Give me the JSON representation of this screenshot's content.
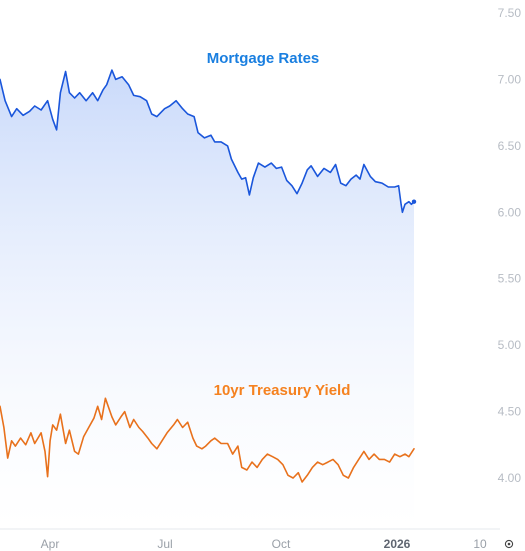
{
  "chart_data": {
    "type": "line",
    "title": "",
    "xlabel": "",
    "ylabel": "",
    "x_range": [
      "2025-03-01",
      "2026-02-06"
    ],
    "ylim": [
      3.9,
      7.55
    ],
    "y_ticks": [
      "7.50",
      "7.00",
      "6.50",
      "6.00",
      "5.50",
      "5.00",
      "4.50",
      "4.00"
    ],
    "x_ticks": [
      {
        "label": "Apr",
        "date": "2025-04-01",
        "bold": false
      },
      {
        "label": "Jul",
        "date": "2025-07-01",
        "bold": false
      },
      {
        "label": "Oct",
        "date": "2025-10-01",
        "bold": false
      },
      {
        "label": "2026",
        "date": "2026-01-01",
        "bold": true
      },
      {
        "label": "10",
        "date": "2026-02-10",
        "bold": false
      }
    ],
    "grid": false,
    "legend": "none",
    "series": [
      {
        "name": "Mortgage Rates",
        "color": "#1a56db",
        "label_color": "#1a7fe0",
        "area_fill": true,
        "points": [
          [
            "2025-03-01",
            7.0
          ],
          [
            "2025-03-05",
            6.84
          ],
          [
            "2025-03-10",
            6.72
          ],
          [
            "2025-03-14",
            6.78
          ],
          [
            "2025-03-19",
            6.73
          ],
          [
            "2025-03-24",
            6.76
          ],
          [
            "2025-03-28",
            6.8
          ],
          [
            "2025-04-02",
            6.77
          ],
          [
            "2025-04-07",
            6.84
          ],
          [
            "2025-04-11",
            6.7
          ],
          [
            "2025-04-14",
            6.62
          ],
          [
            "2025-04-17",
            6.9
          ],
          [
            "2025-04-21",
            7.06
          ],
          [
            "2025-04-24",
            6.9
          ],
          [
            "2025-04-28",
            6.86
          ],
          [
            "2025-05-02",
            6.9
          ],
          [
            "2025-05-07",
            6.84
          ],
          [
            "2025-05-12",
            6.9
          ],
          [
            "2025-05-16",
            6.84
          ],
          [
            "2025-05-20",
            6.92
          ],
          [
            "2025-05-23",
            6.96
          ],
          [
            "2025-05-27",
            7.07
          ],
          [
            "2025-05-30",
            7.0
          ],
          [
            "2025-06-04",
            7.02
          ],
          [
            "2025-06-09",
            6.96
          ],
          [
            "2025-06-13",
            6.88
          ],
          [
            "2025-06-18",
            6.87
          ],
          [
            "2025-06-23",
            6.84
          ],
          [
            "2025-06-27",
            6.74
          ],
          [
            "2025-07-01",
            6.72
          ],
          [
            "2025-07-07",
            6.78
          ],
          [
            "2025-07-11",
            6.8
          ],
          [
            "2025-07-16",
            6.84
          ],
          [
            "2025-07-21",
            6.78
          ],
          [
            "2025-07-25",
            6.74
          ],
          [
            "2025-07-30",
            6.72
          ],
          [
            "2025-08-02",
            6.6
          ],
          [
            "2025-08-07",
            6.56
          ],
          [
            "2025-08-12",
            6.58
          ],
          [
            "2025-08-15",
            6.53
          ],
          [
            "2025-08-20",
            6.53
          ],
          [
            "2025-08-25",
            6.5
          ],
          [
            "2025-08-28",
            6.4
          ],
          [
            "2025-09-02",
            6.3
          ],
          [
            "2025-09-05",
            6.25
          ],
          [
            "2025-09-08",
            6.26
          ],
          [
            "2025-09-11",
            6.13
          ],
          [
            "2025-09-14",
            6.26
          ],
          [
            "2025-09-18",
            6.37
          ],
          [
            "2025-09-23",
            6.34
          ],
          [
            "2025-09-28",
            6.37
          ],
          [
            "2025-10-02",
            6.33
          ],
          [
            "2025-10-06",
            6.34
          ],
          [
            "2025-10-10",
            6.24
          ],
          [
            "2025-10-14",
            6.2
          ],
          [
            "2025-10-18",
            6.14
          ],
          [
            "2025-10-22",
            6.22
          ],
          [
            "2025-10-26",
            6.32
          ],
          [
            "2025-10-29",
            6.35
          ],
          [
            "2025-11-03",
            6.27
          ],
          [
            "2025-11-08",
            6.33
          ],
          [
            "2025-11-13",
            6.3
          ],
          [
            "2025-11-17",
            6.36
          ],
          [
            "2025-11-21",
            6.22
          ],
          [
            "2025-11-25",
            6.2
          ],
          [
            "2025-11-29",
            6.25
          ],
          [
            "2025-12-03",
            6.28
          ],
          [
            "2025-12-06",
            6.25
          ],
          [
            "2025-12-09",
            6.36
          ],
          [
            "2025-12-14",
            6.27
          ],
          [
            "2025-12-18",
            6.23
          ],
          [
            "2025-12-23",
            6.22
          ],
          [
            "2025-12-28",
            6.19
          ],
          [
            "2026-01-02",
            6.19
          ],
          [
            "2026-01-05",
            6.2
          ],
          [
            "2026-01-07",
            6.06
          ],
          [
            "2026-01-08",
            6.0
          ],
          [
            "2026-01-10",
            6.06
          ],
          [
            "2026-01-13",
            6.08
          ],
          [
            "2026-01-15",
            6.06
          ],
          [
            "2026-01-17",
            6.08
          ]
        ]
      },
      {
        "name": "10yr Treasury Yield",
        "color": "#e8711c",
        "label_color": "#f58220",
        "area_fill": false,
        "points": [
          [
            "2025-03-01",
            4.54
          ],
          [
            "2025-03-04",
            4.38
          ],
          [
            "2025-03-07",
            4.15
          ],
          [
            "2025-03-10",
            4.28
          ],
          [
            "2025-03-13",
            4.24
          ],
          [
            "2025-03-17",
            4.3
          ],
          [
            "2025-03-21",
            4.25
          ],
          [
            "2025-03-25",
            4.34
          ],
          [
            "2025-03-28",
            4.26
          ],
          [
            "2025-04-02",
            4.34
          ],
          [
            "2025-04-05",
            4.2
          ],
          [
            "2025-04-07",
            4.01
          ],
          [
            "2025-04-09",
            4.28
          ],
          [
            "2025-04-11",
            4.4
          ],
          [
            "2025-04-14",
            4.36
          ],
          [
            "2025-04-17",
            4.48
          ],
          [
            "2025-04-21",
            4.26
          ],
          [
            "2025-04-24",
            4.36
          ],
          [
            "2025-04-28",
            4.2
          ],
          [
            "2025-05-01",
            4.18
          ],
          [
            "2025-05-05",
            4.31
          ],
          [
            "2025-05-09",
            4.38
          ],
          [
            "2025-05-13",
            4.45
          ],
          [
            "2025-05-16",
            4.54
          ],
          [
            "2025-05-19",
            4.44
          ],
          [
            "2025-05-22",
            4.6
          ],
          [
            "2025-05-27",
            4.46
          ],
          [
            "2025-05-30",
            4.4
          ],
          [
            "2025-06-03",
            4.46
          ],
          [
            "2025-06-06",
            4.5
          ],
          [
            "2025-06-10",
            4.38
          ],
          [
            "2025-06-13",
            4.44
          ],
          [
            "2025-06-17",
            4.38
          ],
          [
            "2025-06-20",
            4.35
          ],
          [
            "2025-06-24",
            4.3
          ],
          [
            "2025-06-27",
            4.26
          ],
          [
            "2025-07-01",
            4.22
          ],
          [
            "2025-07-05",
            4.28
          ],
          [
            "2025-07-09",
            4.34
          ],
          [
            "2025-07-14",
            4.4
          ],
          [
            "2025-07-17",
            4.44
          ],
          [
            "2025-07-21",
            4.38
          ],
          [
            "2025-07-25",
            4.42
          ],
          [
            "2025-07-29",
            4.3
          ],
          [
            "2025-08-01",
            4.24
          ],
          [
            "2025-08-05",
            4.22
          ],
          [
            "2025-08-08",
            4.24
          ],
          [
            "2025-08-12",
            4.28
          ],
          [
            "2025-08-15",
            4.3
          ],
          [
            "2025-08-20",
            4.26
          ],
          [
            "2025-08-25",
            4.26
          ],
          [
            "2025-08-29",
            4.18
          ],
          [
            "2025-09-02",
            4.24
          ],
          [
            "2025-09-05",
            4.08
          ],
          [
            "2025-09-09",
            4.06
          ],
          [
            "2025-09-13",
            4.12
          ],
          [
            "2025-09-17",
            4.08
          ],
          [
            "2025-09-21",
            4.14
          ],
          [
            "2025-09-25",
            4.18
          ],
          [
            "2025-09-29",
            4.16
          ],
          [
            "2025-10-03",
            4.14
          ],
          [
            "2025-10-07",
            4.1
          ],
          [
            "2025-10-11",
            4.02
          ],
          [
            "2025-10-15",
            4.0
          ],
          [
            "2025-10-19",
            4.04
          ],
          [
            "2025-10-22",
            3.97
          ],
          [
            "2025-10-26",
            4.02
          ],
          [
            "2025-10-30",
            4.08
          ],
          [
            "2025-11-03",
            4.12
          ],
          [
            "2025-11-07",
            4.1
          ],
          [
            "2025-11-11",
            4.12
          ],
          [
            "2025-11-15",
            4.14
          ],
          [
            "2025-11-19",
            4.1
          ],
          [
            "2025-11-23",
            4.02
          ],
          [
            "2025-11-27",
            4.0
          ],
          [
            "2025-12-01",
            4.08
          ],
          [
            "2025-12-05",
            4.14
          ],
          [
            "2025-12-09",
            4.2
          ],
          [
            "2025-12-13",
            4.14
          ],
          [
            "2025-12-17",
            4.18
          ],
          [
            "2025-12-21",
            4.14
          ],
          [
            "2025-12-25",
            4.14
          ],
          [
            "2025-12-29",
            4.12
          ],
          [
            "2026-01-02",
            4.18
          ],
          [
            "2026-01-06",
            4.16
          ],
          [
            "2026-01-10",
            4.18
          ],
          [
            "2026-01-13",
            4.16
          ],
          [
            "2026-01-17",
            4.22
          ]
        ]
      }
    ]
  },
  "settings_icon": "gear-icon"
}
